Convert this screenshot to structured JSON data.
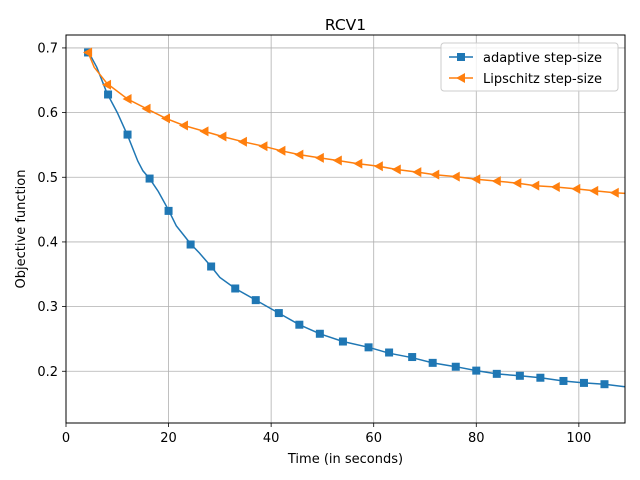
{
  "chart_data": {
    "type": "line",
    "title": "RCV1",
    "xlabel": "Time (in seconds)",
    "ylabel": "Objective function",
    "xlim": [
      0,
      109
    ],
    "ylim": [
      0.12,
      0.72
    ],
    "xticks": [
      0,
      20,
      40,
      60,
      80,
      100
    ],
    "yticks": [
      0.2,
      0.3,
      0.4,
      0.5,
      0.6,
      0.7
    ],
    "xtick_labels": [
      "0",
      "20",
      "40",
      "60",
      "80",
      "100"
    ],
    "ytick_labels": [
      "0.2",
      "0.3",
      "0.4",
      "0.5",
      "0.6",
      "0.7"
    ],
    "grid": true,
    "legend_position": "top-right",
    "series": [
      {
        "name": "adaptive step-size",
        "color": "#1f77b4",
        "marker": "square",
        "line": [
          [
            4.3,
            0.695
          ],
          [
            6,
            0.67
          ],
          [
            8,
            0.63
          ],
          [
            10,
            0.6
          ],
          [
            12,
            0.565
          ],
          [
            14,
            0.525
          ],
          [
            15,
            0.51
          ],
          [
            16.3,
            0.498
          ],
          [
            18,
            0.478
          ],
          [
            20,
            0.449
          ],
          [
            21.5,
            0.425
          ],
          [
            23,
            0.41
          ],
          [
            24.3,
            0.397
          ],
          [
            26,
            0.383
          ],
          [
            28.3,
            0.362
          ],
          [
            30,
            0.345
          ],
          [
            33,
            0.328
          ],
          [
            37,
            0.31
          ],
          [
            41.5,
            0.29
          ],
          [
            45.5,
            0.272
          ],
          [
            49.5,
            0.258
          ],
          [
            54,
            0.246
          ],
          [
            59,
            0.237
          ],
          [
            63,
            0.228
          ],
          [
            67.5,
            0.221
          ],
          [
            71.5,
            0.213
          ],
          [
            76,
            0.207
          ],
          [
            80,
            0.201
          ],
          [
            84,
            0.196
          ],
          [
            88.5,
            0.193
          ],
          [
            92.5,
            0.19
          ],
          [
            97,
            0.185
          ],
          [
            101,
            0.182
          ],
          [
            105,
            0.18
          ],
          [
            109,
            0.176
          ]
        ],
        "markers": [
          [
            4.3,
            0.693
          ],
          [
            8.2,
            0.628
          ],
          [
            12,
            0.566
          ],
          [
            16.3,
            0.498
          ],
          [
            20,
            0.448
          ],
          [
            24.3,
            0.396
          ],
          [
            28.3,
            0.362
          ],
          [
            33,
            0.328
          ],
          [
            37,
            0.31
          ],
          [
            41.5,
            0.29
          ],
          [
            45.5,
            0.272
          ],
          [
            49.5,
            0.258
          ],
          [
            54,
            0.246
          ],
          [
            59,
            0.237
          ],
          [
            63,
            0.229
          ],
          [
            67.5,
            0.222
          ],
          [
            71.5,
            0.213
          ],
          [
            76,
            0.207
          ],
          [
            80,
            0.201
          ],
          [
            84,
            0.196
          ],
          [
            88.5,
            0.193
          ],
          [
            92.5,
            0.19
          ],
          [
            97,
            0.185
          ],
          [
            101,
            0.182
          ],
          [
            105,
            0.18
          ]
        ]
      },
      {
        "name": "Lipschitz step-size",
        "color": "#ff7f0e",
        "marker": "triangle-left",
        "line": [
          [
            4.3,
            0.693
          ],
          [
            5.5,
            0.67
          ],
          [
            8,
            0.645
          ],
          [
            12,
            0.621
          ],
          [
            15.7,
            0.606
          ],
          [
            19.5,
            0.591
          ],
          [
            23,
            0.58
          ],
          [
            27,
            0.571
          ],
          [
            30.5,
            0.563
          ],
          [
            34.5,
            0.555
          ],
          [
            38.5,
            0.548
          ],
          [
            42,
            0.541
          ],
          [
            45.5,
            0.535
          ],
          [
            49.5,
            0.53
          ],
          [
            53,
            0.526
          ],
          [
            57,
            0.521
          ],
          [
            61,
            0.517
          ],
          [
            64.5,
            0.512
          ],
          [
            68.5,
            0.508
          ],
          [
            72,
            0.504
          ],
          [
            76,
            0.501
          ],
          [
            80,
            0.497
          ],
          [
            84,
            0.494
          ],
          [
            88,
            0.491
          ],
          [
            91.5,
            0.487
          ],
          [
            95.5,
            0.485
          ],
          [
            99.5,
            0.482
          ],
          [
            103,
            0.479
          ],
          [
            107,
            0.476
          ],
          [
            109,
            0.475
          ]
        ],
        "markers": [
          [
            4.3,
            0.693
          ],
          [
            8,
            0.643
          ],
          [
            12,
            0.621
          ],
          [
            15.7,
            0.606
          ],
          [
            19.5,
            0.591
          ],
          [
            23,
            0.58
          ],
          [
            27,
            0.571
          ],
          [
            30.5,
            0.563
          ],
          [
            34.5,
            0.555
          ],
          [
            38.5,
            0.548
          ],
          [
            42,
            0.541
          ],
          [
            45.5,
            0.535
          ],
          [
            49.5,
            0.53
          ],
          [
            53,
            0.526
          ],
          [
            57,
            0.521
          ],
          [
            61,
            0.517
          ],
          [
            64.5,
            0.512
          ],
          [
            68.5,
            0.508
          ],
          [
            72,
            0.504
          ],
          [
            76,
            0.501
          ],
          [
            80,
            0.497
          ],
          [
            84,
            0.494
          ],
          [
            88,
            0.491
          ],
          [
            91.5,
            0.487
          ],
          [
            95.5,
            0.485
          ],
          [
            99.5,
            0.482
          ],
          [
            103,
            0.479
          ],
          [
            107,
            0.476
          ]
        ]
      }
    ]
  }
}
